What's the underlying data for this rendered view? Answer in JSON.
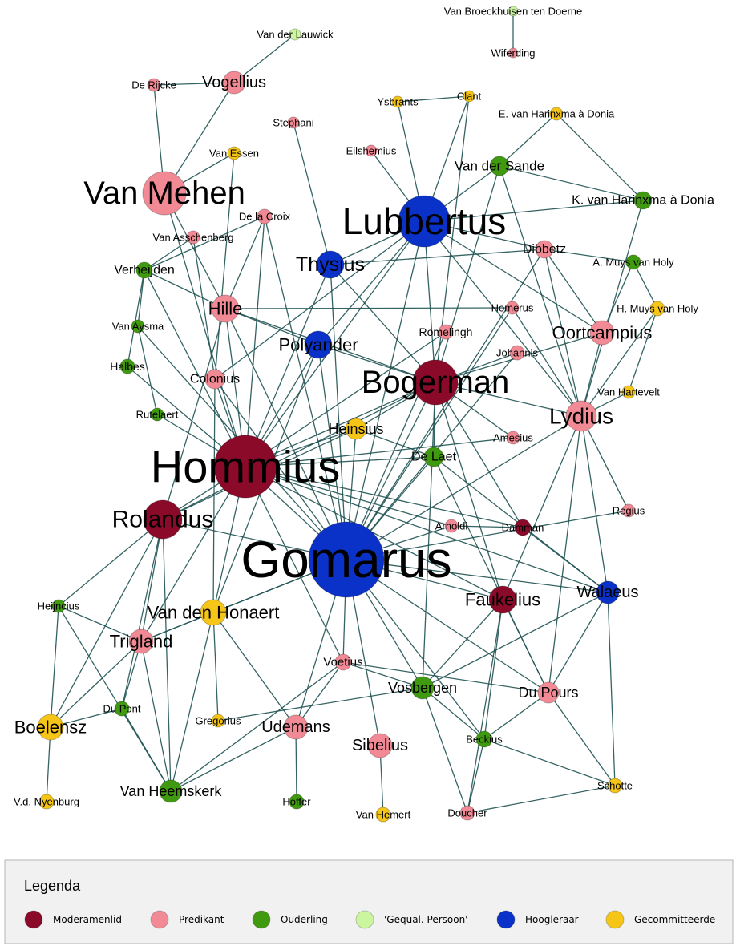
{
  "nodes": [
    {
      "label": "Van Broeckhuisen ten Doerne",
      "color": "#ccf5a0"
    },
    {
      "label": "Wiferding",
      "color": "#f28a96"
    },
    {
      "label": "Van der Lauwick",
      "color": "#ccf5a0"
    },
    {
      "label": "De Rijcke",
      "color": "#f28a96"
    },
    {
      "label": "Vogellius",
      "color": "#f28a96"
    },
    {
      "label": "Ysbrants",
      "color": "#f5c518"
    },
    {
      "label": "Clant",
      "color": "#f5c518"
    },
    {
      "label": "E. van Harinxma à Donia",
      "color": "#f5c518"
    },
    {
      "label": "Stephani",
      "color": "#f28a96"
    },
    {
      "label": "Van Essen",
      "color": "#f5c518"
    },
    {
      "label": "Eilshemius",
      "color": "#f28a96"
    },
    {
      "label": "Van der Sande",
      "color": "#3f9a10"
    },
    {
      "label": "Van Mehen",
      "color": "#f28a96"
    },
    {
      "label": "Lubbertus",
      "color": "#0a32c8"
    },
    {
      "label": "K. van Harinxma à Donia",
      "color": "#3f9a10"
    },
    {
      "label": "De la Croix",
      "color": "#f28a96"
    },
    {
      "label": "Van Asschenberg",
      "color": "#f28a96"
    },
    {
      "label": "Thysius",
      "color": "#0a32c8"
    },
    {
      "label": "Dibbetz",
      "color": "#f28a96"
    },
    {
      "label": "Verheijden",
      "color": "#3f9a10"
    },
    {
      "label": "A. Muys van Holy",
      "color": "#3f9a10"
    },
    {
      "label": "Hille",
      "color": "#f28a96"
    },
    {
      "label": "Homerus",
      "color": "#f28a96"
    },
    {
      "label": "H. Muys van Holy",
      "color": "#f5c518"
    },
    {
      "label": "Van Aysma",
      "color": "#3f9a10"
    },
    {
      "label": "Romelingh",
      "color": "#f28a96"
    },
    {
      "label": "Oortcampius",
      "color": "#f28a96"
    },
    {
      "label": "Polyander",
      "color": "#0a32c8"
    },
    {
      "label": "Johannis",
      "color": "#f28a96"
    },
    {
      "label": "Halbes",
      "color": "#3f9a10"
    },
    {
      "label": "Colonius",
      "color": "#f28a96"
    },
    {
      "label": "Bogerman",
      "color": "#8b0a2a"
    },
    {
      "label": "Van Hartevelt",
      "color": "#f5c518"
    },
    {
      "label": "Rutelaert",
      "color": "#3f9a10"
    },
    {
      "label": "Heinsius",
      "color": "#f5c518"
    },
    {
      "label": "Lydius",
      "color": "#f28a96"
    },
    {
      "label": "Amesius",
      "color": "#f28a96"
    },
    {
      "label": "Hommius",
      "color": "#8b0a2a"
    },
    {
      "label": "De Laet",
      "color": "#3f9a10"
    },
    {
      "label": "Rolandus",
      "color": "#8b0a2a"
    },
    {
      "label": "Regius",
      "color": "#f28a96"
    },
    {
      "label": "Arnoldi",
      "color": "#f28a96"
    },
    {
      "label": "Damman",
      "color": "#8b0a2a"
    },
    {
      "label": "Gomarus",
      "color": "#0a32c8"
    },
    {
      "label": "Faukelius",
      "color": "#8b0a2a"
    },
    {
      "label": "Walaeus",
      "color": "#0a32c8"
    },
    {
      "label": "Heijncius",
      "color": "#3f9a10"
    },
    {
      "label": "Van den Honaert",
      "color": "#f5c518"
    },
    {
      "label": "Trigland",
      "color": "#f28a96"
    },
    {
      "label": "Voetius",
      "color": "#f28a96"
    },
    {
      "label": "Vosbergen",
      "color": "#3f9a10"
    },
    {
      "label": "Du Pours",
      "color": "#f28a96"
    },
    {
      "label": "Du Pont",
      "color": "#3f9a10"
    },
    {
      "label": "Boelensz",
      "color": "#f5c518"
    },
    {
      "label": "Gregorius",
      "color": "#f5c518"
    },
    {
      "label": "Udemans",
      "color": "#f28a96"
    },
    {
      "label": "Sibelius",
      "color": "#f28a96"
    },
    {
      "label": "Beckius",
      "color": "#3f9a10"
    },
    {
      "label": "Schotte",
      "color": "#f5c518"
    },
    {
      "label": "Van Heemskerk",
      "color": "#3f9a10"
    },
    {
      "label": "Hoffer",
      "color": "#3f9a10"
    },
    {
      "label": "V.d. Nyenburg",
      "color": "#f5c518"
    },
    {
      "label": "Van Hemert",
      "color": "#f5c518"
    },
    {
      "label": "Doucher",
      "color": "#f28a96"
    }
  ],
  "legend": {
    "title": "Legenda",
    "items": [
      {
        "label": "Moderamenlid",
        "color": "#8b0a2a"
      },
      {
        "label": "Predikant",
        "color": "#f28a96"
      },
      {
        "label": "Ouderling",
        "color": "#3f9a10"
      },
      {
        "label": "'Gequal. Persoon'",
        "color": "#ccf5a0"
      },
      {
        "label": "Hoogleraar",
        "color": "#0a32c8"
      },
      {
        "label": "Gecommitteerde",
        "color": "#f5c518"
      }
    ]
  }
}
